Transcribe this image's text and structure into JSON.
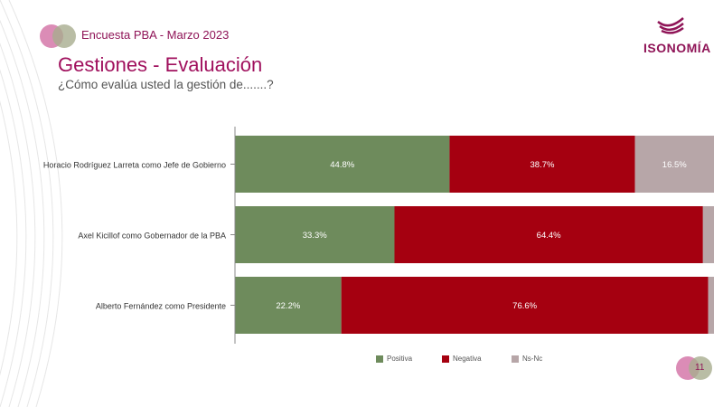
{
  "header": {
    "survey_label": "Encuesta PBA - Marzo 2023",
    "title": "Gestiones - Evaluación",
    "subtitle": "¿Cómo evalúa usted la gestión de.......?",
    "brand": "ISONOMÍA"
  },
  "page_number": "11",
  "colors": {
    "positiva": "#6e8b5c",
    "negativa": "#a50010",
    "nsnc": "#b7a6a8",
    "accent": "#a0105d"
  },
  "chart_data": {
    "type": "bar",
    "orientation": "horizontal-stacked-100",
    "categories": [
      "Horacio Rodríguez Larreta como Jefe de Gobierno",
      "Axel Kicillof como Gobernador de la PBA",
      "Alberto Fernández como Presidente"
    ],
    "series": [
      {
        "name": "Positiva",
        "values": [
          44.8,
          33.3,
          22.2
        ],
        "labels": [
          "44.8%",
          "33.3%",
          "22.2%"
        ]
      },
      {
        "name": "Negativa",
        "values": [
          38.7,
          64.4,
          76.6
        ],
        "labels": [
          "38.7%",
          "64.4%",
          "76.6%"
        ]
      },
      {
        "name": "Ns-Nc",
        "values": [
          16.5,
          2.3,
          1.2
        ],
        "labels": [
          "16.5%",
          "",
          ""
        ]
      }
    ],
    "xlim": [
      0,
      100
    ],
    "legend_position": "bottom"
  }
}
